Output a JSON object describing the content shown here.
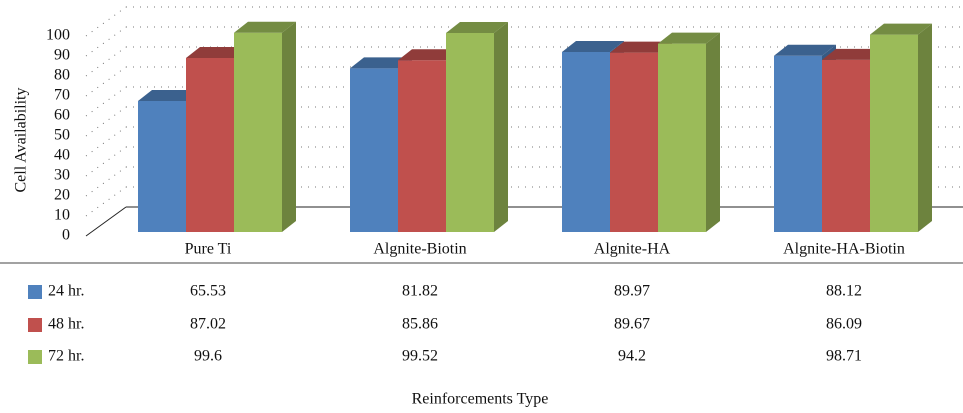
{
  "chart_data": {
    "type": "bar3d",
    "y_label": "Cell Availability",
    "x_label": "Reinforcements Type",
    "categories": [
      "Pure Ti",
      "Algnite-Biotin",
      "Algnite-HA",
      "Algnite-HA-Biotin"
    ],
    "series": [
      {
        "name": "24 hr.",
        "color": "#4f81bd",
        "values": [
          65.53,
          81.82,
          89.97,
          88.12
        ]
      },
      {
        "name": "48 hr.",
        "color": "#c0504d",
        "values": [
          87.02,
          85.86,
          89.67,
          86.09
        ]
      },
      {
        "name": "72 hr.",
        "color": "#9bbb59",
        "values": [
          99.6,
          99.52,
          94.2,
          98.71
        ]
      }
    ],
    "ylim": [
      0,
      100
    ],
    "yticks": [
      0,
      10,
      20,
      30,
      40,
      50,
      60,
      70,
      80,
      90,
      100
    ],
    "grid": true
  }
}
